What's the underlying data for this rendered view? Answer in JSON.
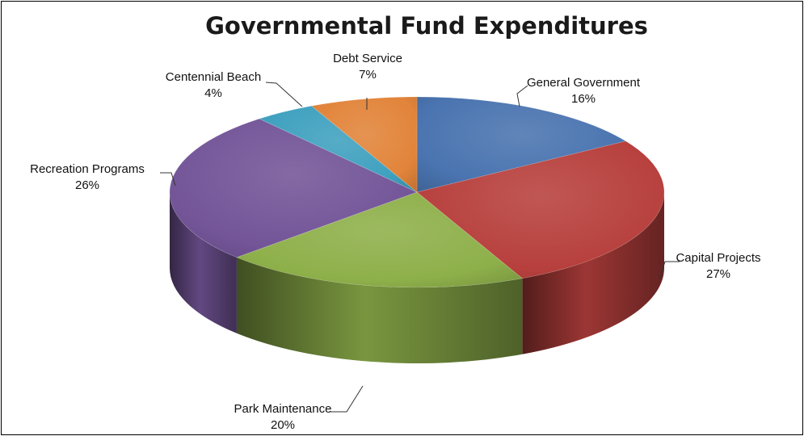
{
  "chart_data": {
    "type": "pie",
    "title": "Governmental Fund Expenditures",
    "start": "12 o'clock",
    "direction": "clockwise",
    "slices": [
      {
        "label": "General Government",
        "value": 16,
        "value_label": "16%",
        "color": "#4a74b0"
      },
      {
        "label": "Capital Projects",
        "value": 27,
        "value_label": "27%",
        "color": "#b7403d"
      },
      {
        "label": "Park Maintenance",
        "value": 20,
        "value_label": "20%",
        "color": "#8eb04a"
      },
      {
        "label": "Recreation Programs",
        "value": 26,
        "value_label": "26%",
        "color": "#735598"
      },
      {
        "label": "Centennial Beach",
        "value": 4,
        "value_label": "4%",
        "color": "#3fa1bf"
      },
      {
        "label": "Debt Service",
        "value": 7,
        "value_label": "7%",
        "color": "#e2843a"
      }
    ],
    "style": "3d",
    "legend": "none"
  }
}
